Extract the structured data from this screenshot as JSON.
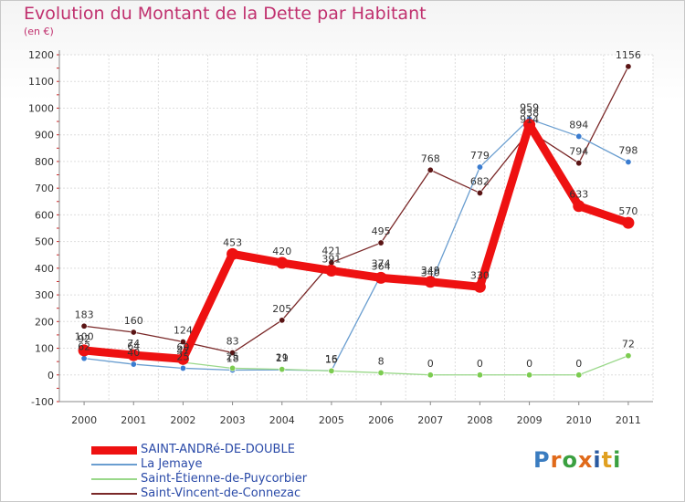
{
  "title": "Evolution du Montant de la Dette par Habitant",
  "subtitle": "(en €)",
  "logo": {
    "text": "Proxiti",
    "colors": [
      "#3a7cc0",
      "#e06a1a",
      "#3aa040",
      "#e06a1a",
      "#2a5aa0",
      "#e0a020",
      "#3aa040"
    ]
  },
  "chart_data": {
    "type": "line",
    "title": "Evolution du Montant de la Dette par Habitant",
    "ylabel": "(en €)",
    "xlabel": "",
    "x": [
      "2000",
      "2001",
      "2002",
      "2003",
      "2004",
      "2005",
      "2006",
      "2007",
      "2008",
      "2009",
      "2010",
      "2011"
    ],
    "ylim": [
      -100,
      1200
    ],
    "yticks": [
      "-100",
      "0",
      "100",
      "200",
      "300",
      "400",
      "500",
      "600",
      "700",
      "800",
      "900",
      "1000",
      "1100",
      "1200"
    ],
    "legend_position": "bottom",
    "grid": true,
    "series": [
      {
        "name": "SAINT-ANDRé-DE-DOUBLE",
        "color": "#ee1111",
        "marker": "#ee1111",
        "values": [
          92,
          74,
          60,
          453,
          420,
          391,
          364,
          349,
          330,
          938,
          633,
          570
        ],
        "labels": [
          "92",
          "74",
          "60",
          "453",
          "420",
          "391",
          "364",
          "349",
          "330",
          "938",
          "633",
          "570"
        ]
      },
      {
        "name": "La Jemaye",
        "color": "#6a9ed0",
        "marker": "#3a7cd0",
        "values": [
          62,
          40,
          25,
          18,
          19,
          16,
          374,
          340,
          779,
          959,
          894,
          798
        ],
        "labels": [
          "62",
          "40",
          "25",
          "18",
          "19",
          "16",
          "374",
          "340",
          "779",
          "959",
          "894",
          "798"
        ]
      },
      {
        "name": "Saint-Étienne-de-Puycorbier",
        "color": "#9ad88a",
        "marker": "#7ccc50",
        "values": [
          100,
          64,
          47,
          25,
          21,
          15,
          8,
          0,
          0,
          0,
          0,
          72
        ],
        "labels": [
          "100",
          "64",
          "47",
          "25",
          "21",
          "15",
          "8",
          "0",
          "0",
          "0",
          "0",
          "72"
        ]
      },
      {
        "name": "Saint-Vincent-de-Connezac",
        "color": "#7a2828",
        "marker": "#5a1414",
        "values": [
          183,
          160,
          124,
          83,
          205,
          421,
          495,
          768,
          682,
          914,
          794,
          1156
        ],
        "labels": [
          "183",
          "160",
          "124",
          "83",
          "205",
          "421",
          "495",
          "768",
          "682",
          "914",
          "794",
          "1156"
        ]
      }
    ]
  }
}
